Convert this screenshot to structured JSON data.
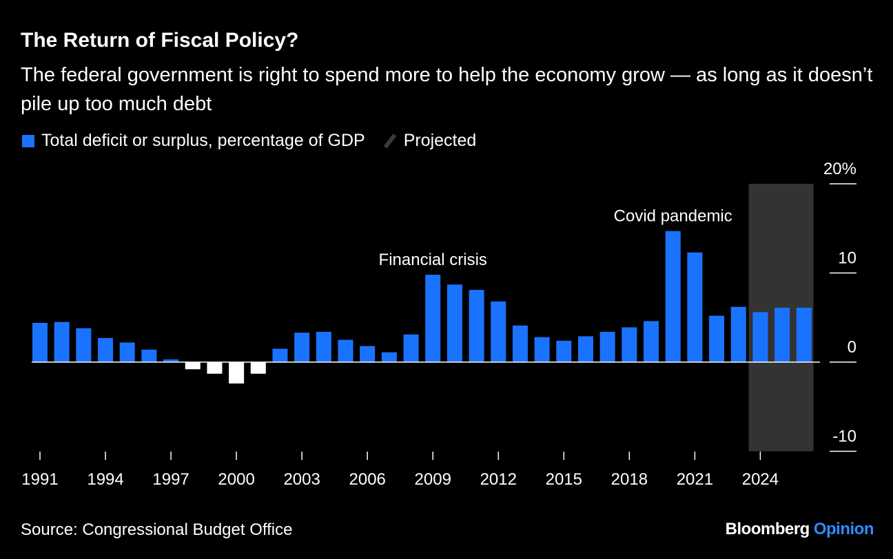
{
  "header": {
    "title": "The Return of Fiscal Policy?",
    "subtitle": "The federal government is right to spend more to help the economy grow — as long as it doesn’t pile up too much debt"
  },
  "legend": {
    "series_label": "Total deficit or surplus, percentage of GDP",
    "projected_label": "Projected"
  },
  "footer": {
    "source": "Source: Congressional Budget Office",
    "brand_primary": "Bloomberg",
    "brand_secondary": "Opinion"
  },
  "colors": {
    "background": "#000000",
    "deficit_bar": "#1a73ff",
    "surplus_bar": "#ffffff",
    "projected_band": "#333333",
    "brand_accent": "#2f8cff"
  },
  "chart_data": {
    "type": "bar",
    "x": [
      1991,
      1992,
      1993,
      1994,
      1995,
      1996,
      1997,
      1998,
      1999,
      2000,
      2001,
      2002,
      2003,
      2004,
      2005,
      2006,
      2007,
      2008,
      2009,
      2010,
      2011,
      2012,
      2013,
      2014,
      2015,
      2016,
      2017,
      2018,
      2019,
      2020,
      2021,
      2022,
      2023,
      2024,
      2025,
      2026
    ],
    "values": [
      4.4,
      4.5,
      3.8,
      2.7,
      2.2,
      1.4,
      0.3,
      -0.8,
      -1.3,
      -2.4,
      -1.3,
      1.5,
      3.3,
      3.4,
      2.5,
      1.8,
      1.1,
      3.1,
      9.8,
      8.7,
      8.1,
      6.8,
      4.1,
      2.8,
      2.4,
      2.9,
      3.4,
      3.9,
      4.6,
      14.7,
      12.3,
      5.2,
      6.2,
      5.6,
      6.1,
      6.1
    ],
    "projected_from": 2024,
    "projected_to": 2026,
    "ylim": [
      -10,
      20
    ],
    "yticks": [
      20,
      10,
      0,
      -10
    ],
    "ytick_labels": [
      "20%",
      "10",
      "0",
      "-10"
    ],
    "xticks": [
      1991,
      1994,
      1997,
      2000,
      2003,
      2006,
      2009,
      2012,
      2015,
      2018,
      2021,
      2024
    ],
    "annotations": [
      {
        "text": "Financial crisis",
        "year": 2009
      },
      {
        "text": "Covid pandemic",
        "year": 2020
      }
    ],
    "sign_convention": "positive = deficit, negative = surplus"
  }
}
